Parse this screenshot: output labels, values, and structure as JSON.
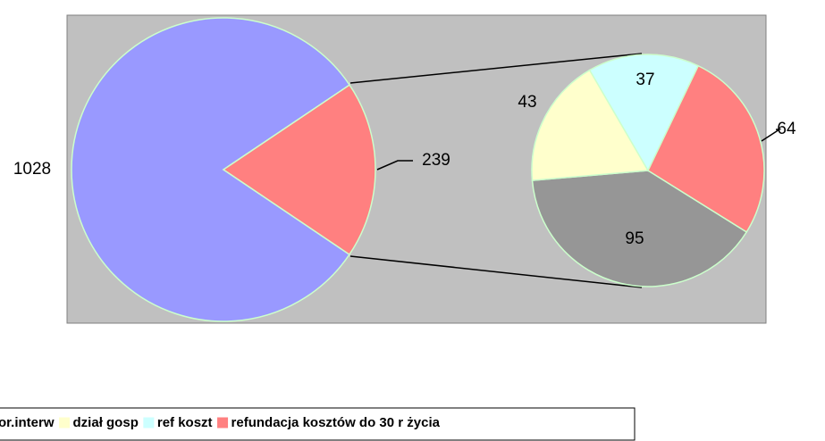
{
  "chart_data": {
    "type": "pie-of-pie",
    "main": {
      "values": [
        1028,
        239
      ],
      "colors": [
        "#9999ff",
        "#ff8080"
      ]
    },
    "series": [
      {
        "name": "or.interw",
        "color": "#969696",
        "value": 95
      },
      {
        "name": "dział gosp",
        "color": "#ffffcc",
        "value": 43
      },
      {
        "name": "ref koszt",
        "color": "#ccffff",
        "value": 37
      },
      {
        "name": "refundacja kosztów do 30 r życia",
        "color": "#ff8080",
        "value": 64
      }
    ]
  }
}
